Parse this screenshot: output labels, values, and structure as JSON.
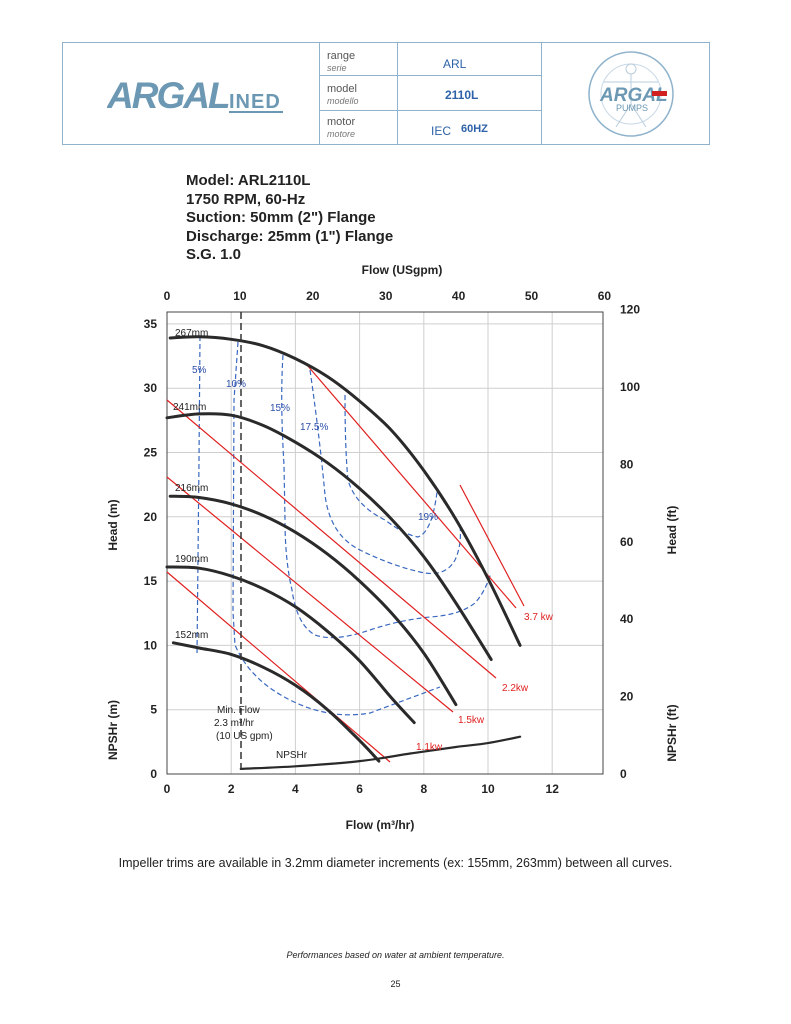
{
  "header": {
    "brand_logo_text": "ARGAL INED",
    "range_label": "range",
    "range_sub": "serie",
    "range_value": "ARL",
    "model_label": "model",
    "model_sub": "modello",
    "model_value": "2110L",
    "motor_label": "motor",
    "motor_sub": "motore",
    "motor_value_1": "IEC",
    "motor_value_2": "60HZ",
    "badge_logo_text": "ARGAL PUMPS ITALY"
  },
  "model_info": {
    "line1": "Model: ARL2110L",
    "line2": "1750 RPM, 60-Hz",
    "line3": "Suction: 50mm (2\") Flange",
    "line4": "Discharge: 25mm (1\") Flange",
    "line5": "S.G. 1.0"
  },
  "chart_data": {
    "type": "line",
    "title": "Model: ARL2110L",
    "xlabel": "Flow (m³/hr)",
    "x2label": "Flow (USgpm)",
    "ylabel": "Head (m)",
    "y2label": "Head (ft)",
    "ylabel_lower": "NPSHr (m)",
    "y2label_lower": "NPSHr (ft)",
    "xlim": [
      0,
      13.6
    ],
    "ylim": [
      0,
      35.5
    ],
    "x_ticks": [
      "0",
      "2",
      "4",
      "6",
      "8",
      "10",
      "12"
    ],
    "x2_ticks": [
      "0",
      "10",
      "20",
      "30",
      "40",
      "50",
      "60"
    ],
    "y_ticks": [
      "0",
      "5",
      "10",
      "15",
      "20",
      "25",
      "30",
      "35"
    ],
    "y2_ticks": [
      "0",
      "20",
      "40",
      "60",
      "80",
      "100",
      "120"
    ],
    "grid": true,
    "series": [
      {
        "name": "267mm",
        "x": [
          0.1,
          1,
          2,
          3,
          4,
          5,
          6,
          7,
          8,
          9,
          10,
          11
        ],
        "y": [
          33.9,
          34,
          33.8,
          33.3,
          32.3,
          30.9,
          29,
          26.7,
          23.6,
          19.8,
          15.2,
          10
        ]
      },
      {
        "name": "241mm",
        "x": [
          0,
          1,
          2,
          3,
          4,
          5,
          6,
          7,
          8,
          9,
          10.1
        ],
        "y": [
          27.7,
          28,
          27.9,
          27.1,
          25.8,
          24.2,
          22.2,
          19.8,
          16.9,
          13.3,
          8.9
        ]
      },
      {
        "name": "216mm",
        "x": [
          0.1,
          1,
          2,
          3,
          4,
          5,
          6,
          7,
          8,
          9
        ],
        "y": [
          21.6,
          21.5,
          21,
          20.1,
          18.8,
          17.1,
          15,
          12.5,
          9.4,
          5.4
        ]
      },
      {
        "name": "190mm",
        "x": [
          0,
          1,
          2,
          3,
          4,
          5,
          6,
          7,
          7.7
        ],
        "y": [
          16.1,
          16,
          15.4,
          14.4,
          13,
          11.1,
          8.8,
          5.9,
          4
        ]
      },
      {
        "name": "152mm",
        "x": [
          0.2,
          1,
          2,
          3,
          4,
          5,
          6,
          6.6
        ],
        "y": [
          10.2,
          9.8,
          9.3,
          8.3,
          6.9,
          5,
          2.6,
          1
        ]
      },
      {
        "name": "NPSHr",
        "x": [
          2.3,
          4,
          6,
          7.6,
          9,
          10,
          11
        ],
        "y": [
          0.4,
          0.6,
          1,
          1.6,
          2.1,
          2.4,
          2.9
        ]
      }
    ],
    "min_flow": {
      "x": 2.3,
      "label_1": "Min. Flow",
      "label_2": "2.3 m³/hr",
      "label_3": "(10 US gpm)"
    },
    "efficiency_labels": [
      "5%",
      "10%",
      "15%",
      "17.5%",
      "19%"
    ],
    "power_labels": [
      "1.1kw",
      "1.5kw",
      "2.2kw",
      "3.7 kw"
    ],
    "npshr_label": "NPSHr"
  },
  "note": "Impeller trims are available in 3.2mm diameter increments (ex: 155mm, 263mm) between all curves.",
  "footer": "Performances based on water at ambient temperature.",
  "page_number": "25",
  "colors": {
    "accent": "#2d62a8",
    "efficiency": "#2d4fa8",
    "power": "#e02020",
    "curve": "#2a2a2a",
    "grid": "#cfcfcf"
  }
}
